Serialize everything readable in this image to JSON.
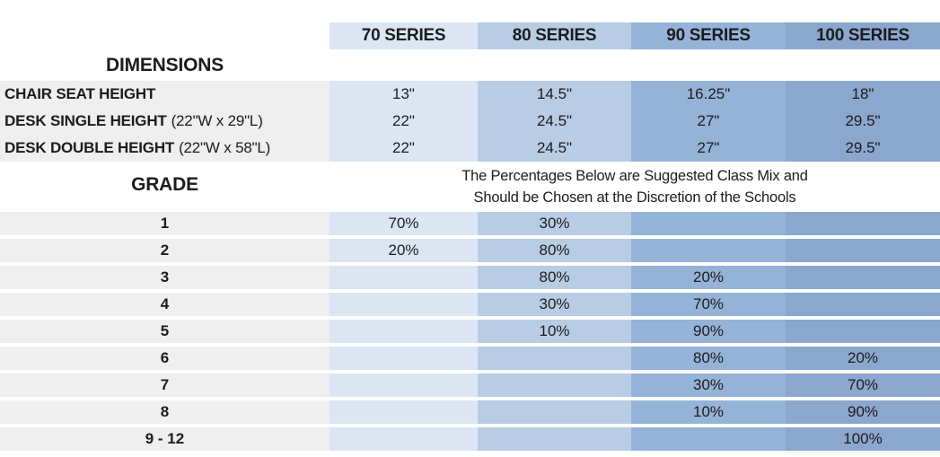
{
  "table": {
    "series_headers": [
      {
        "label": "70 SERIES"
      },
      {
        "label": "80 SERIES"
      },
      {
        "label": "90 SERIES"
      },
      {
        "label": "100 SERIES"
      }
    ],
    "dimensions": {
      "title": "DIMENSIONS",
      "rows": [
        {
          "label": "CHAIR SEAT HEIGHT",
          "detail": "",
          "values": [
            "13\"",
            "14.5\"",
            "16.25\"",
            "18\""
          ]
        },
        {
          "label": "DESK SINGLE HEIGHT",
          "detail": "(22\"W x 29\"L)",
          "values": [
            "22\"",
            "24.5\"",
            "27\"",
            "29.5\""
          ]
        },
        {
          "label": "DESK DOUBLE HEIGHT",
          "detail": "(22\"W x 58\"L)",
          "values": [
            "22\"",
            "24.5\"",
            "27\"",
            "29.5\""
          ]
        }
      ]
    },
    "note": {
      "line1": "The Percentages Below are Suggested Class Mix and",
      "line2": "Should be Chosen at the Discretion of the Schools"
    },
    "grade": {
      "title": "GRADE",
      "rows": [
        {
          "label": "1",
          "values": [
            "70%",
            "30%",
            "",
            ""
          ]
        },
        {
          "label": "2",
          "values": [
            "20%",
            "80%",
            "",
            ""
          ]
        },
        {
          "label": "3",
          "values": [
            "",
            "80%",
            "20%",
            ""
          ]
        },
        {
          "label": "4",
          "values": [
            "",
            "30%",
            "70%",
            ""
          ]
        },
        {
          "label": "5",
          "values": [
            "",
            "10%",
            "90%",
            ""
          ]
        },
        {
          "label": "6",
          "values": [
            "",
            "",
            "80%",
            "20%"
          ]
        },
        {
          "label": "7",
          "values": [
            "",
            "",
            "30%",
            "70%"
          ]
        },
        {
          "label": "8",
          "values": [
            "",
            "",
            "10%",
            "90%"
          ]
        },
        {
          "label": "9 - 12",
          "values": [
            "",
            "",
            "",
            "100%"
          ]
        }
      ]
    },
    "colors": {
      "series_70_bg": "#dce6f2",
      "series_80_bg": "#b8cce4",
      "series_90_bg": "#95b3d7",
      "series_100_bg": "#8ba7cd",
      "label_column_bg": "#efefef",
      "text": "#1c1c1e"
    }
  }
}
